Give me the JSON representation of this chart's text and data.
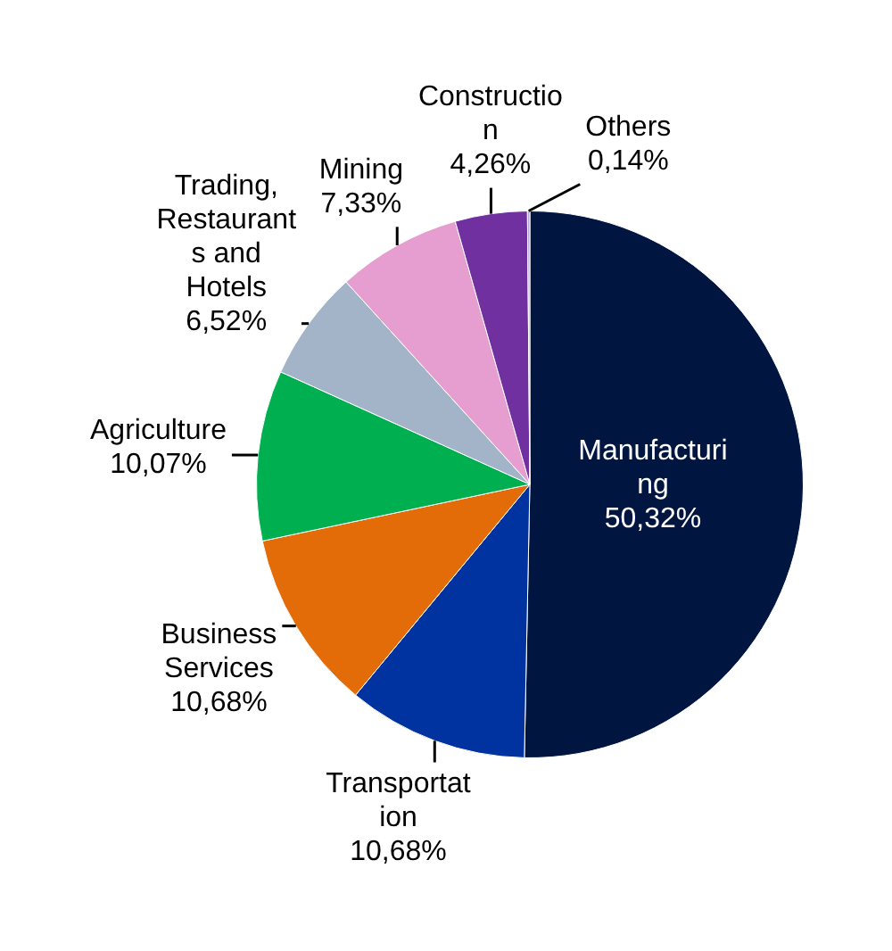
{
  "chart_data": {
    "type": "pie",
    "categories": [
      "Manufacturing",
      "Transportation",
      "Business Services",
      "Agriculture",
      "Trading, Restaurants and Hotels",
      "Mining",
      "Construction",
      "Others"
    ],
    "values": [
      50.32,
      10.68,
      10.68,
      10.07,
      6.52,
      7.33,
      4.26,
      0.14
    ],
    "value_labels": [
      "50,32%",
      "10,68%",
      "10,68%",
      "10,07%",
      "6,52%",
      "7,33%",
      "4,26%",
      "0,14%"
    ],
    "colors": [
      "#001540",
      "#0033a0",
      "#e36c09",
      "#00b050",
      "#a4b4c8",
      "#e59ecf",
      "#7030a0",
      "#b4a7d6"
    ],
    "legend": false
  }
}
